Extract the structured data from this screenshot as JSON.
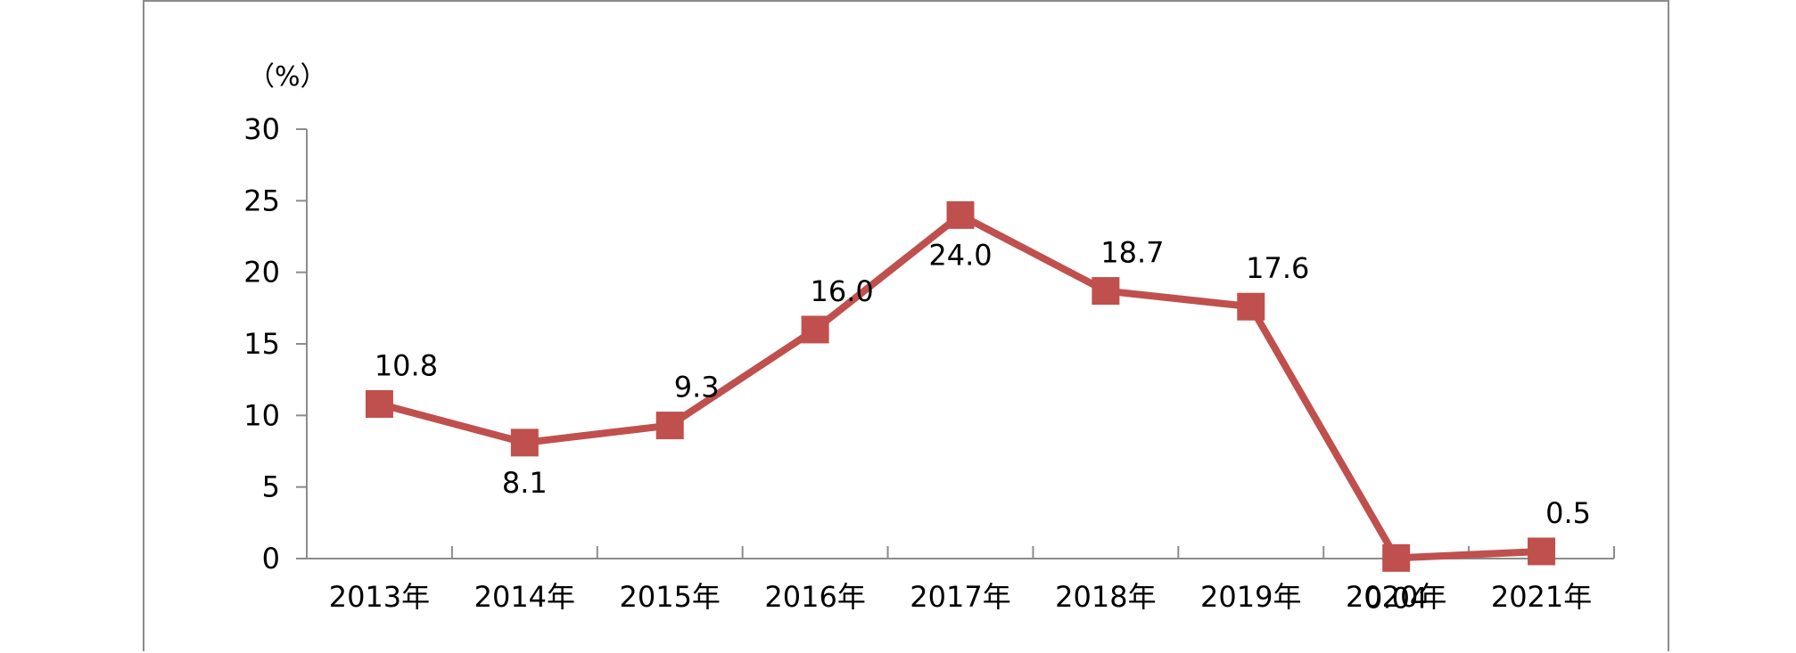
{
  "chart_data": {
    "type": "line",
    "ylabel": "（%）",
    "categories": [
      "2013年",
      "2014年",
      "2015年",
      "2016年",
      "2017年",
      "2018年",
      "2019年",
      "2020年",
      "2021年"
    ],
    "series": [
      {
        "values": [
          10.8,
          8.1,
          9.3,
          16.0,
          24.0,
          18.7,
          17.6,
          0.04,
          0.5
        ],
        "labels": [
          "10.8",
          "8.1",
          "9.3",
          "16.0",
          "24.0",
          "18.7",
          "17.6",
          "0.04",
          "0.5"
        ]
      }
    ],
    "ylim": [
      0,
      30
    ],
    "yticks": [
      "0",
      "5",
      "10",
      "15",
      "20",
      "25",
      "30"
    ],
    "grid": false,
    "legend": "none",
    "colors": {
      "line": "#c0504d",
      "axis": "#8c8c8c"
    }
  }
}
